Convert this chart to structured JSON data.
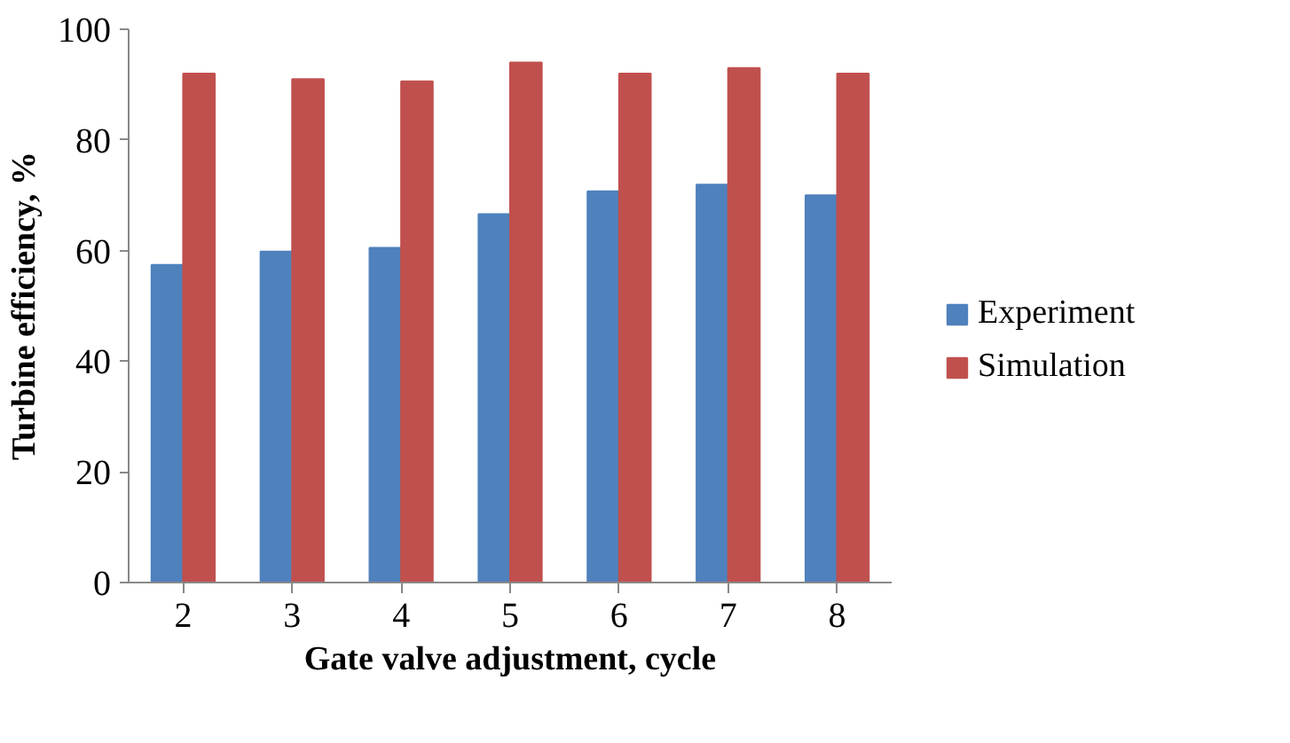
{
  "chart_data": {
    "type": "bar",
    "xlabel": "Gate valve adjustment, cycle",
    "ylabel": "Turbine efficiency, %",
    "categories": [
      "2",
      "3",
      "4",
      "5",
      "6",
      "7",
      "8"
    ],
    "series": [
      {
        "name": "Experiment",
        "color": "#4f81bd",
        "values": [
          57.4,
          59.8,
          60.5,
          66.6,
          70.7,
          71.9,
          70.0
        ]
      },
      {
        "name": "Simulation",
        "color": "#c0504d",
        "values": [
          92.0,
          91.0,
          90.6,
          94.0,
          92.0,
          93.0,
          92.0
        ]
      }
    ],
    "ylim": [
      0,
      100
    ],
    "yticks": [
      0,
      20,
      40,
      60,
      80,
      100
    ],
    "grid": false,
    "legend": "right"
  }
}
